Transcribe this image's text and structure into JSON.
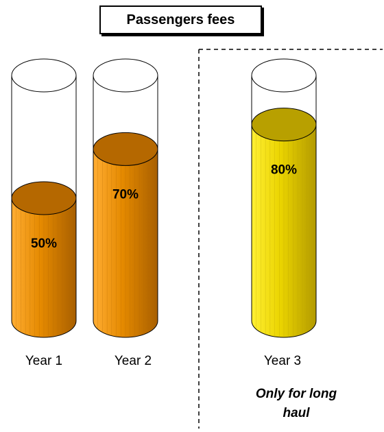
{
  "chart_data": {
    "type": "bar",
    "title": "Passengers fees",
    "categories": [
      "Year 1",
      "Year 2",
      "Year 3"
    ],
    "values": [
      50,
      70,
      80
    ],
    "value_labels": [
      "50%",
      "70%",
      "80%"
    ],
    "ylim": [
      0,
      100
    ],
    "annotation": "Only for long haul",
    "colors": [
      "#e58a00",
      "#e58a00",
      "#e6c400"
    ]
  }
}
